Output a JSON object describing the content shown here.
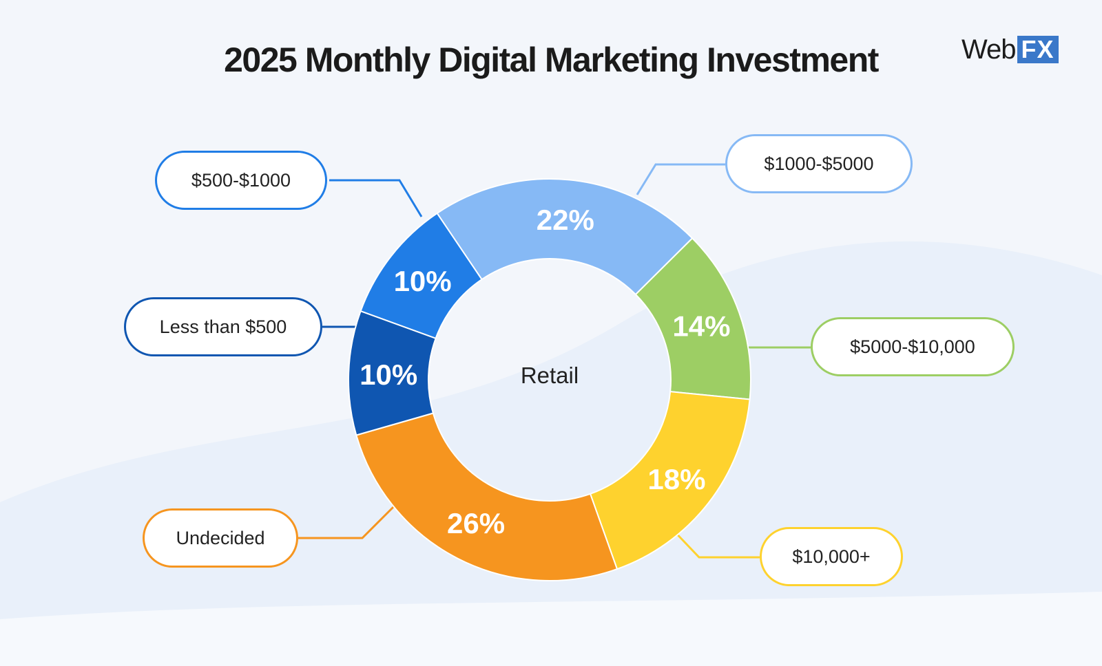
{
  "header": {
    "title": "2025 Monthly Digital Marketing Investment",
    "logo": {
      "text": "Web",
      "badge": "FX",
      "badge_color": "#3a78c9"
    }
  },
  "chart_data": {
    "type": "pie",
    "donut": true,
    "center_label": "Retail",
    "slices": [
      {
        "label": "$500-$1000",
        "value": 10,
        "display": "10%",
        "color": "#207de6"
      },
      {
        "label": "$1000-$5000",
        "value": 22,
        "display": "22%",
        "color": "#86b9f5"
      },
      {
        "label": "$5000-$10,000",
        "value": 14,
        "display": "14%",
        "color": "#9dce64"
      },
      {
        "label": "$10,000+",
        "value": 18,
        "display": "18%",
        "color": "#fed22e"
      },
      {
        "label": "Undecided",
        "value": 26,
        "display": "26%",
        "color": "#f6951f"
      },
      {
        "label": "Less than $500",
        "value": 10,
        "display": "10%",
        "color": "#0f56b1"
      }
    ]
  }
}
